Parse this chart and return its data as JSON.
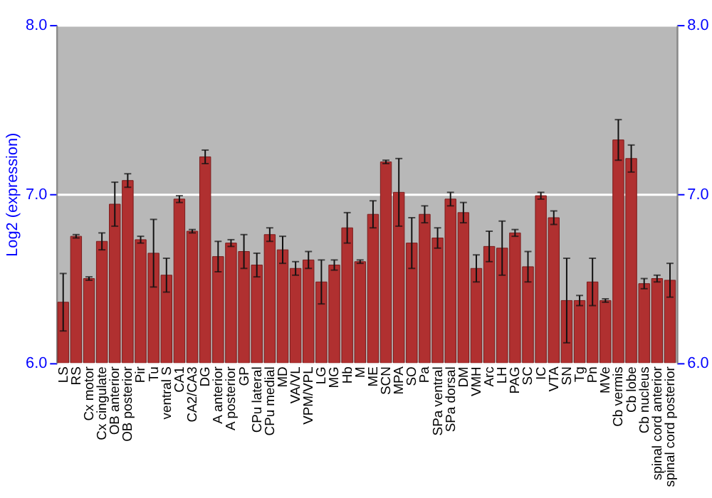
{
  "chart_data": {
    "type": "bar",
    "ylabel": "Log2 (expression)",
    "categories": [
      "LS",
      "RS",
      "Cx motor",
      "Cx cingulate",
      "OB anterior",
      "OB posterior",
      "Pir",
      "Tu",
      "ventral S",
      "CA1",
      "CA2/CA3",
      "DG",
      "A anterior",
      "A posterior",
      "GP",
      "CPu lateral",
      "CPu medial",
      "MD",
      "VA/VL",
      "VPM/VPL",
      "LG",
      "MG",
      "Hb",
      "M",
      "ME",
      "SCN",
      "MPA",
      "SO",
      "Pa",
      "SPa ventral",
      "SPa dorsal",
      "DM",
      "VMH",
      "Arc",
      "LH",
      "PAG",
      "SC",
      "IC",
      "VTA",
      "SN",
      "Tg",
      "Pn",
      "MVe",
      "Cb vermis",
      "Cb lobe",
      "Cb nucleus",
      "spinal cord anterior",
      "spinal cord posterior"
    ],
    "values": [
      6.36,
      6.75,
      6.5,
      6.72,
      6.94,
      7.08,
      6.73,
      6.65,
      6.52,
      6.97,
      6.78,
      7.22,
      6.63,
      6.71,
      6.66,
      6.58,
      6.76,
      6.67,
      6.56,
      6.61,
      6.48,
      6.58,
      6.8,
      6.6,
      6.88,
      7.19,
      7.01,
      6.71,
      6.88,
      6.74,
      6.97,
      6.89,
      6.56,
      6.69,
      6.68,
      6.77,
      6.57,
      6.99,
      6.86,
      6.37,
      6.37,
      6.48,
      6.37,
      7.32,
      7.21,
      6.47,
      6.5,
      6.49
    ],
    "errors": [
      0.17,
      0.01,
      0.01,
      0.05,
      0.13,
      0.04,
      0.02,
      0.2,
      0.1,
      0.02,
      0.01,
      0.04,
      0.09,
      0.02,
      0.1,
      0.07,
      0.04,
      0.08,
      0.04,
      0.05,
      0.13,
      0.03,
      0.09,
      0.01,
      0.08,
      0.01,
      0.2,
      0.15,
      0.05,
      0.06,
      0.04,
      0.06,
      0.08,
      0.09,
      0.16,
      0.02,
      0.09,
      0.02,
      0.04,
      0.25,
      0.03,
      0.14,
      0.01,
      0.12,
      0.08,
      0.03,
      0.02,
      0.1
    ],
    "color": "#b03030",
    "ylim": [
      6,
      8
    ],
    "yticks": [
      {
        "value": 6,
        "label": "6.0"
      },
      {
        "value": 7,
        "label": "7.0"
      },
      {
        "value": 8,
        "label": "8.0"
      }
    ],
    "y2lim": [
      6,
      8
    ],
    "y2ticks": [
      {
        "value": 6,
        "label": "6.0"
      },
      {
        "value": 7,
        "label": "7.0"
      },
      {
        "value": 8,
        "label": "8.0"
      }
    ],
    "grid": "y"
  }
}
